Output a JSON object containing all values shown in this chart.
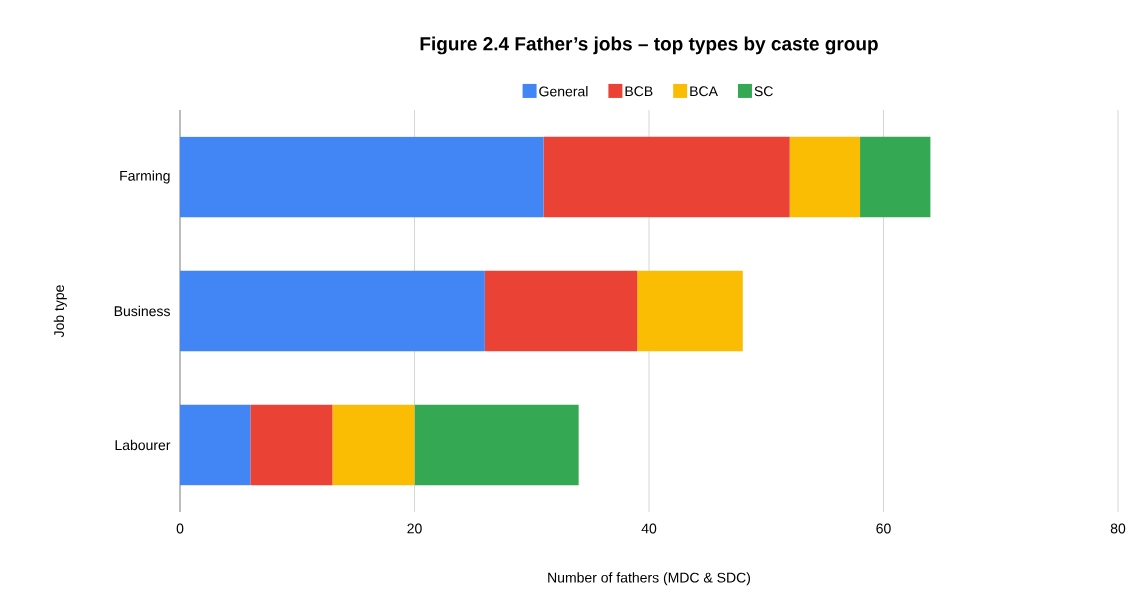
{
  "chart_data": {
    "type": "bar",
    "orientation": "horizontal",
    "stacked": true,
    "title": "Figure 2.4 Father’s jobs – top types by caste group",
    "xlabel": "Number of fathers (MDC & SDC)",
    "ylabel": "Job type",
    "categories": [
      "Farming",
      "Business",
      "Labourer"
    ],
    "series": [
      {
        "name": "General",
        "color": "#4285f4",
        "values": [
          31,
          26,
          6
        ]
      },
      {
        "name": "BCB",
        "color": "#ea4335",
        "values": [
          21,
          13,
          7
        ]
      },
      {
        "name": "BCA",
        "color": "#fbbc04",
        "values": [
          6,
          9,
          7
        ]
      },
      {
        "name": "SC",
        "color": "#34a853",
        "values": [
          6,
          0,
          14
        ]
      }
    ],
    "xlim": [
      0,
      80
    ],
    "xticks": [
      0,
      20,
      40,
      60,
      80
    ],
    "grid": "x",
    "legend": "top"
  }
}
